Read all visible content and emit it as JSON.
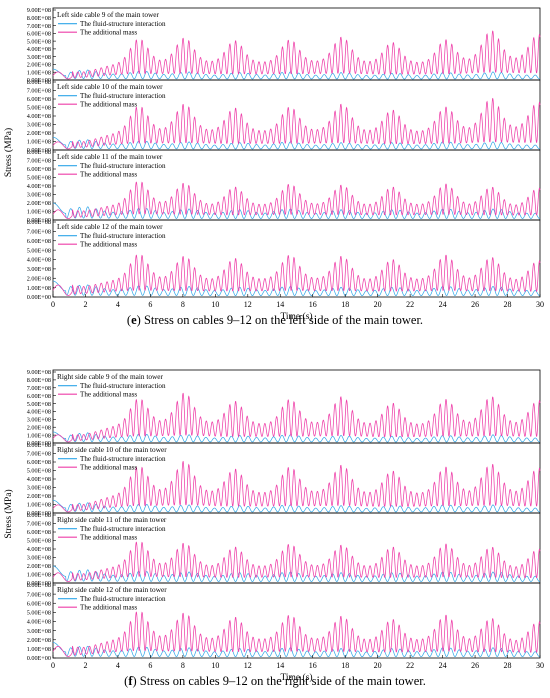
{
  "colors": {
    "fluid_structure": "#2fa6e8",
    "additional_mass": "#ee3ea8",
    "axis": "#000000"
  },
  "figures": [
    {
      "caption_letter": "e",
      "caption_text": "Stress on cables 9–12 on the left side of the main tower.",
      "xlabel": "Time (s)",
      "ylabel": "Stress (MPa)"
    },
    {
      "caption_letter": "f",
      "caption_text": "Stress on cables 9–12 on the right side of the main tower.",
      "xlabel": "Time (s)",
      "ylabel": "Stress (MPa)"
    }
  ],
  "chart_data": [
    {
      "type": "line",
      "title": "Left side cable 9 of the main tower",
      "xlabel": "Time (s)",
      "ylabel": "Stress (MPa)",
      "xlim": [
        0,
        30
      ],
      "ylim": [
        0,
        900000000
      ],
      "x_ticks": [
        "0",
        "2",
        "4",
        "6",
        "8",
        "10",
        "12",
        "14",
        "16",
        "18",
        "20",
        "22",
        "24",
        "26",
        "28",
        "30"
      ],
      "y_ticks": [
        "0.00E+00",
        "1.00E+08",
        "2.00E+08",
        "3.00E+08",
        "4.00E+08",
        "5.00E+08",
        "6.00E+08",
        "7.00E+08",
        "8.00E+08",
        "9.00E+08"
      ],
      "legend_position": "top-left",
      "series": [
        {
          "name": "The fluid-structure interaction",
          "color": "#2fa6e8",
          "peak_times": [
            0.3,
            2.0,
            5.5,
            8.3,
            11.5,
            14.5,
            17.8,
            21.0,
            24.2,
            27.2
          ],
          "peak_values": [
            140000000,
            150000000,
            130000000,
            120000000,
            110000000,
            120000000,
            110000000,
            100000000,
            110000000,
            120000000
          ]
        },
        {
          "name": "The additional mass",
          "color": "#ee3ea8",
          "peak_times": [
            0.5,
            5.3,
            8.1,
            11.2,
            14.6,
            17.8,
            20.9,
            24.2,
            27.0,
            29.9
          ],
          "peak_values": [
            130000000,
            450000000,
            460000000,
            430000000,
            440000000,
            470000000,
            410000000,
            440000000,
            540000000,
            500000000
          ]
        }
      ]
    },
    {
      "type": "line",
      "title": "Left side cable 10 of the main tower",
      "xlabel": "Time (s)",
      "ylabel": "Stress (MPa)",
      "xlim": [
        0,
        30
      ],
      "ylim": [
        0,
        800000000
      ],
      "x_ticks": [
        "0",
        "2",
        "4",
        "6",
        "8",
        "10",
        "12",
        "14",
        "16",
        "18",
        "20",
        "22",
        "24",
        "26",
        "28",
        "30"
      ],
      "y_ticks": [
        "0.00E+00",
        "1.00E+08",
        "2.00E+08",
        "3.00E+08",
        "4.00E+08",
        "5.00E+08",
        "6.00E+08",
        "7.00E+08",
        "8.00E+08"
      ],
      "legend_position": "top-left",
      "series": [
        {
          "name": "The fluid-structure interaction",
          "color": "#2fa6e8",
          "peak_times": [
            0.3,
            2.0,
            5.5,
            8.3,
            11.5,
            14.5,
            17.8,
            21.0,
            24.2,
            27.2
          ],
          "peak_values": [
            150000000,
            140000000,
            120000000,
            110000000,
            100000000,
            110000000,
            100000000,
            100000000,
            110000000,
            110000000
          ]
        },
        {
          "name": "The additional mass",
          "color": "#ee3ea8",
          "peak_times": [
            0.5,
            5.3,
            8.1,
            11.2,
            14.6,
            17.8,
            20.9,
            24.2,
            27.0,
            29.9
          ],
          "peak_values": [
            120000000,
            440000000,
            460000000,
            420000000,
            430000000,
            460000000,
            400000000,
            430000000,
            520000000,
            480000000
          ]
        }
      ]
    },
    {
      "type": "line",
      "title": "Left side cable 11 of the main tower",
      "xlabel": "Time (s)",
      "ylabel": "Stress (MPa)",
      "xlim": [
        0,
        30
      ],
      "ylim": [
        0,
        800000000
      ],
      "x_ticks": [
        "0",
        "2",
        "4",
        "6",
        "8",
        "10",
        "12",
        "14",
        "16",
        "18",
        "20",
        "22",
        "24",
        "26",
        "28",
        "30"
      ],
      "y_ticks": [
        "0.00E+00",
        "1.00E+08",
        "2.00E+08",
        "3.00E+08",
        "4.00E+08",
        "5.00E+08",
        "6.00E+08",
        "7.00E+08",
        "8.00E+08"
      ],
      "legend_position": "top-left",
      "series": [
        {
          "name": "The fluid-structure interaction",
          "color": "#2fa6e8",
          "peak_times": [
            0.3,
            2.0,
            5.5,
            8.3,
            11.5,
            14.5,
            17.8,
            21.0,
            24.2,
            27.2
          ],
          "peak_values": [
            200000000,
            180000000,
            160000000,
            150000000,
            140000000,
            150000000,
            140000000,
            140000000,
            150000000,
            150000000
          ]
        },
        {
          "name": "The additional mass",
          "color": "#ee3ea8",
          "peak_times": [
            0.5,
            5.3,
            8.1,
            11.2,
            14.6,
            17.8,
            20.9,
            24.2,
            27.0,
            29.9
          ],
          "peak_values": [
            150000000,
            390000000,
            370000000,
            330000000,
            360000000,
            350000000,
            330000000,
            360000000,
            330000000,
            320000000
          ]
        }
      ]
    },
    {
      "type": "line",
      "title": "Left side cable 12 of the main tower",
      "xlabel": "Time (s)",
      "ylabel": "Stress (MPa)",
      "xlim": [
        0,
        30
      ],
      "ylim": [
        0,
        800000000
      ],
      "x_ticks": [
        "0",
        "2",
        "4",
        "6",
        "8",
        "10",
        "12",
        "14",
        "16",
        "18",
        "20",
        "22",
        "24",
        "26",
        "28",
        "30"
      ],
      "y_ticks": [
        "0.00E+00",
        "1.00E+08",
        "2.00E+08",
        "3.00E+08",
        "4.00E+08",
        "5.00E+08",
        "6.00E+08",
        "7.00E+08",
        "8.00E+08"
      ],
      "legend_position": "top-left",
      "series": [
        {
          "name": "The fluid-structure interaction",
          "color": "#2fa6e8",
          "peak_times": [
            0.3,
            2.0,
            5.5,
            8.3,
            11.5,
            14.5,
            17.8,
            21.0,
            24.2,
            27.2
          ],
          "peak_values": [
            170000000,
            150000000,
            140000000,
            130000000,
            120000000,
            130000000,
            120000000,
            120000000,
            130000000,
            130000000
          ]
        },
        {
          "name": "The additional mass",
          "color": "#ee3ea8",
          "peak_times": [
            0.5,
            5.3,
            8.1,
            11.2,
            14.6,
            17.8,
            20.9,
            24.2,
            27.0,
            29.9
          ],
          "peak_values": [
            160000000,
            390000000,
            370000000,
            350000000,
            380000000,
            370000000,
            340000000,
            380000000,
            360000000,
            330000000
          ]
        }
      ]
    },
    {
      "type": "line",
      "title": "Right side cable 9 of the main tower",
      "xlabel": "Time (s)",
      "ylabel": "Stress (MPa)",
      "xlim": [
        0,
        30
      ],
      "ylim": [
        0,
        900000000
      ],
      "x_ticks": [
        "0",
        "2",
        "4",
        "6",
        "8",
        "10",
        "12",
        "14",
        "16",
        "18",
        "20",
        "22",
        "24",
        "26",
        "28",
        "30"
      ],
      "y_ticks": [
        "0.00E+00",
        "1.00E+08",
        "2.00E+08",
        "3.00E+08",
        "4.00E+08",
        "5.00E+08",
        "6.00E+08",
        "7.00E+08",
        "8.00E+08",
        "9.00E+08"
      ],
      "legend_position": "top-left",
      "series": [
        {
          "name": "The fluid-structure interaction",
          "color": "#2fa6e8",
          "peak_times": [
            0.3,
            2.0,
            5.5,
            8.3,
            11.5,
            14.5,
            17.8,
            21.0,
            24.2,
            27.2
          ],
          "peak_values": [
            140000000,
            150000000,
            130000000,
            120000000,
            110000000,
            120000000,
            110000000,
            100000000,
            110000000,
            120000000
          ]
        },
        {
          "name": "The additional mass",
          "color": "#ee3ea8",
          "peak_times": [
            0.5,
            5.3,
            8.1,
            11.2,
            14.6,
            17.8,
            20.9,
            24.2,
            27.0,
            29.9
          ],
          "peak_values": [
            130000000,
            480000000,
            540000000,
            450000000,
            470000000,
            500000000,
            430000000,
            470000000,
            500000000,
            460000000
          ]
        }
      ]
    },
    {
      "type": "line",
      "title": "Right side cable 10 of the main tower",
      "xlabel": "Time (s)",
      "ylabel": "Stress (MPa)",
      "xlim": [
        0,
        30
      ],
      "ylim": [
        0,
        800000000
      ],
      "x_ticks": [
        "0",
        "2",
        "4",
        "6",
        "8",
        "10",
        "12",
        "14",
        "16",
        "18",
        "20",
        "22",
        "24",
        "26",
        "28",
        "30"
      ],
      "y_ticks": [
        "0.00E+00",
        "1.00E+08",
        "2.00E+08",
        "3.00E+08",
        "4.00E+08",
        "5.00E+08",
        "6.00E+08",
        "7.00E+08",
        "8.00E+08"
      ],
      "legend_position": "top-left",
      "series": [
        {
          "name": "The fluid-structure interaction",
          "color": "#2fa6e8",
          "peak_times": [
            0.3,
            2.0,
            5.5,
            8.3,
            11.5,
            14.5,
            17.8,
            21.0,
            24.2,
            27.2
          ],
          "peak_values": [
            150000000,
            140000000,
            120000000,
            110000000,
            100000000,
            110000000,
            100000000,
            100000000,
            110000000,
            110000000
          ]
        },
        {
          "name": "The additional mass",
          "color": "#ee3ea8",
          "peak_times": [
            0.5,
            5.3,
            8.1,
            11.2,
            14.6,
            17.8,
            20.9,
            24.2,
            27.0,
            29.9
          ],
          "peak_values": [
            120000000,
            470000000,
            520000000,
            440000000,
            460000000,
            480000000,
            420000000,
            460000000,
            490000000,
            450000000
          ]
        }
      ]
    },
    {
      "type": "line",
      "title": "Right side cable 11 of the main tower",
      "xlabel": "Time (s)",
      "ylabel": "Stress (MPa)",
      "xlim": [
        0,
        30
      ],
      "ylim": [
        0,
        800000000
      ],
      "x_ticks": [
        "0",
        "2",
        "4",
        "6",
        "8",
        "10",
        "12",
        "14",
        "16",
        "18",
        "20",
        "22",
        "24",
        "26",
        "28",
        "30"
      ],
      "y_ticks": [
        "0.00E+00",
        "1.00E+08",
        "2.00E+08",
        "3.00E+08",
        "4.00E+08",
        "5.00E+08",
        "6.00E+08",
        "7.00E+08",
        "8.00E+08"
      ],
      "legend_position": "top-left",
      "series": [
        {
          "name": "The fluid-structure interaction",
          "color": "#2fa6e8",
          "peak_times": [
            0.3,
            2.0,
            5.5,
            8.3,
            11.5,
            14.5,
            17.8,
            21.0,
            24.2,
            27.2
          ],
          "peak_values": [
            200000000,
            180000000,
            160000000,
            150000000,
            140000000,
            150000000,
            140000000,
            140000000,
            150000000,
            150000000
          ]
        },
        {
          "name": "The additional mass",
          "color": "#ee3ea8",
          "peak_times": [
            0.5,
            5.3,
            8.1,
            11.2,
            14.6,
            17.8,
            20.9,
            24.2,
            27.0,
            29.9
          ],
          "peak_values": [
            150000000,
            420000000,
            400000000,
            360000000,
            390000000,
            380000000,
            360000000,
            390000000,
            360000000,
            340000000
          ]
        }
      ]
    },
    {
      "type": "line",
      "title": "Right side cable 12 of the main tower",
      "xlabel": "Time (s)",
      "ylabel": "Stress (MPa)",
      "xlim": [
        0,
        30
      ],
      "ylim": [
        0,
        800000000
      ],
      "x_ticks": [
        "0",
        "2",
        "4",
        "6",
        "8",
        "10",
        "12",
        "14",
        "16",
        "18",
        "20",
        "22",
        "24",
        "26",
        "28",
        "30"
      ],
      "y_ticks": [
        "0.00E+00",
        "1.00E+08",
        "2.00E+08",
        "3.00E+08",
        "4.00E+08",
        "5.00E+08",
        "6.00E+08",
        "7.00E+08",
        "8.00E+08"
      ],
      "legend_position": "top-left",
      "series": [
        {
          "name": "The fluid-structure interaction",
          "color": "#2fa6e8",
          "peak_times": [
            0.3,
            2.0,
            5.5,
            8.3,
            11.5,
            14.5,
            17.8,
            21.0,
            24.2,
            27.2
          ],
          "peak_values": [
            170000000,
            150000000,
            140000000,
            130000000,
            120000000,
            130000000,
            120000000,
            120000000,
            130000000,
            130000000
          ]
        },
        {
          "name": "The additional mass",
          "color": "#ee3ea8",
          "peak_times": [
            0.5,
            5.3,
            8.1,
            11.2,
            14.6,
            17.8,
            20.9,
            24.2,
            27.0,
            29.9
          ],
          "peak_values": [
            160000000,
            440000000,
            420000000,
            380000000,
            400000000,
            390000000,
            360000000,
            400000000,
            370000000,
            340000000
          ]
        }
      ]
    }
  ]
}
